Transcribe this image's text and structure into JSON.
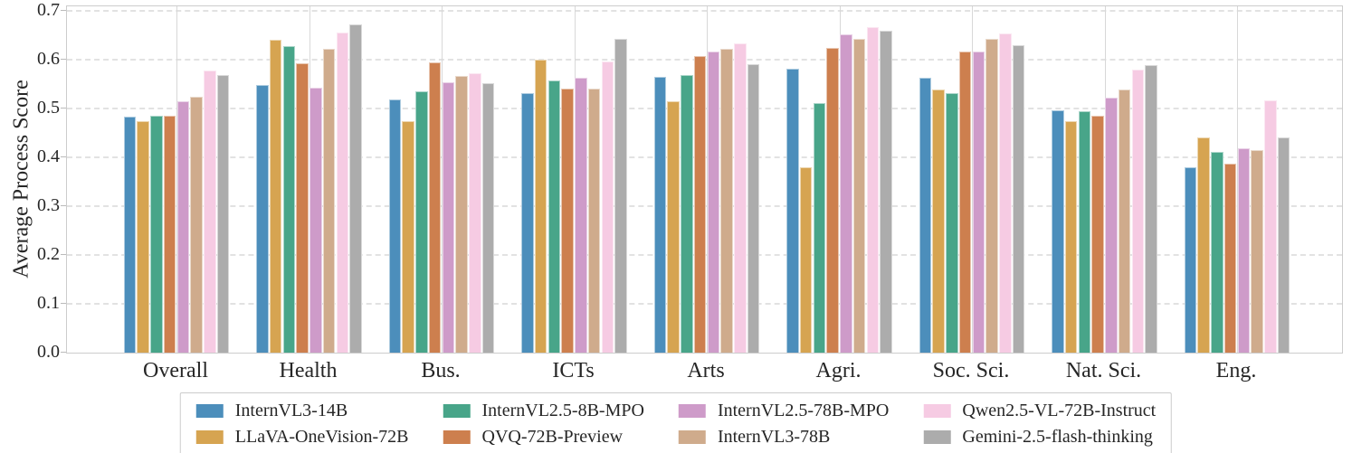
{
  "chart_data": {
    "type": "bar",
    "title": "",
    "xlabel": "",
    "ylabel": "Average Process Score",
    "ylim": [
      0.0,
      0.7
    ],
    "yticks": [
      "0.0",
      "0.1",
      "0.2",
      "0.3",
      "0.4",
      "0.5",
      "0.6",
      "0.7"
    ],
    "grid": "horizontal dashed lines at 0.1 steps; vertical solid lines at category centers; full light box frame",
    "legend_position": "bottom center, boxed, 4 columns x 2 rows",
    "categories": [
      "Overall",
      "Health",
      "Bus.",
      "ICTs",
      "Arts",
      "Agri.",
      "Soc. Sci.",
      "Nat. Sci.",
      "Eng."
    ],
    "series": [
      {
        "name": "InternVL3-14B",
        "color": "#4C8EBB",
        "values": [
          0.483,
          0.548,
          0.518,
          0.532,
          0.564,
          0.581,
          0.563,
          0.497,
          0.38
        ]
      },
      {
        "name": "LLaVA-OneVision-72B",
        "color": "#D6A451",
        "values": [
          0.474,
          0.64,
          0.475,
          0.6,
          0.514,
          0.38,
          0.538,
          0.474,
          0.44
        ]
      },
      {
        "name": "InternVL2.5-8B-MPO",
        "color": "#48A589",
        "values": [
          0.486,
          0.627,
          0.535,
          0.558,
          0.568,
          0.512,
          0.532,
          0.495,
          0.412
        ]
      },
      {
        "name": "QVQ-72B-Preview",
        "color": "#CD7F4E",
        "values": [
          0.485,
          0.592,
          0.594,
          0.54,
          0.607,
          0.625,
          0.616,
          0.486,
          0.387
        ]
      },
      {
        "name": "InternVL2.5-78B-MPO",
        "color": "#CE9BC9",
        "values": [
          0.514,
          0.543,
          0.554,
          0.563,
          0.616,
          0.651,
          0.616,
          0.523,
          0.418
        ]
      },
      {
        "name": "InternVL3-78B",
        "color": "#CFAB8C",
        "values": [
          0.525,
          0.623,
          0.567,
          0.541,
          0.623,
          0.643,
          0.642,
          0.538,
          0.415
        ]
      },
      {
        "name": "Qwen2.5-VL-72B-Instruct",
        "color": "#F6CBE3",
        "values": [
          0.577,
          0.655,
          0.573,
          0.596,
          0.633,
          0.666,
          0.654,
          0.58,
          0.517
        ]
      },
      {
        "name": "Gemini-2.5-flash-thinking",
        "color": "#ACACAC",
        "values": [
          0.569,
          0.673,
          0.551,
          0.642,
          0.591,
          0.66,
          0.63,
          0.588,
          0.44
        ]
      }
    ]
  }
}
